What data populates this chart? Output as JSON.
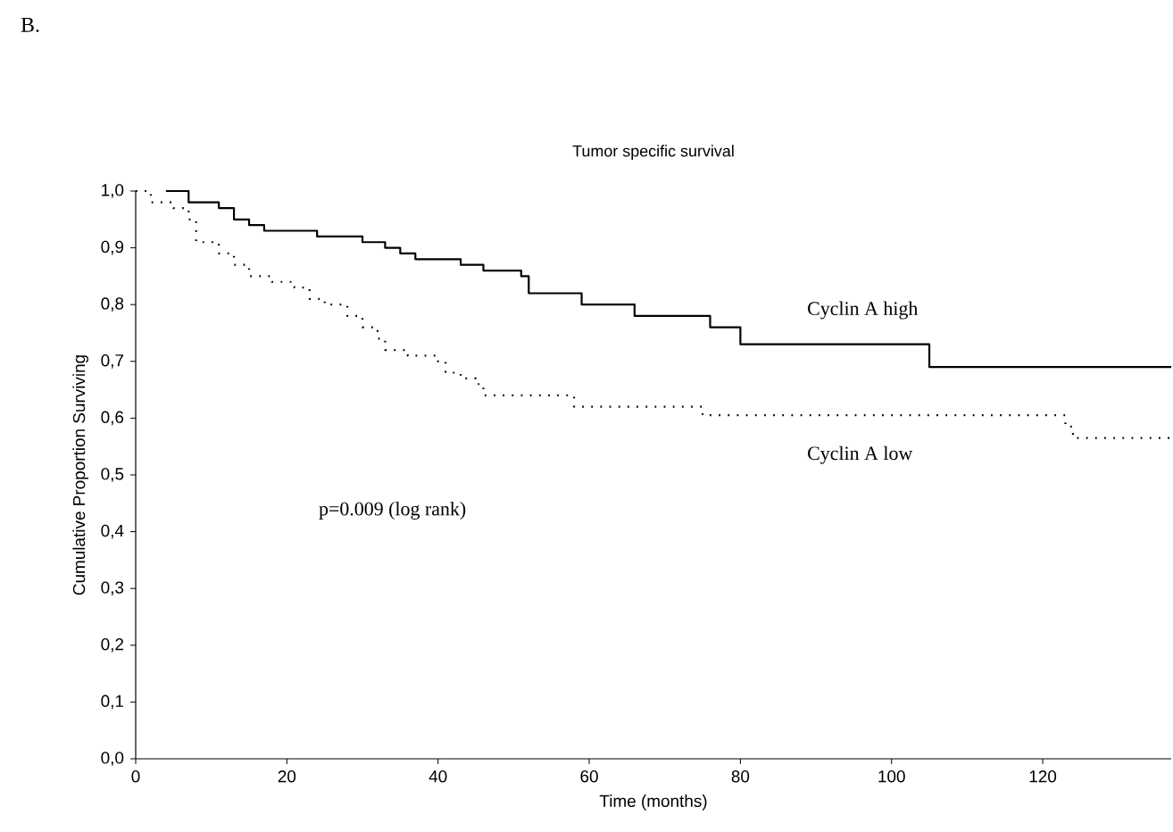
{
  "chart_data": {
    "type": "step",
    "title": "Tumor specific survival",
    "xlabel": "Time (months)",
    "ylabel": "Cumulative Proportion Surviving",
    "annotations": [
      "B.",
      "p=0.009 (log rank)"
    ],
    "xlim": [
      0,
      137
    ],
    "ylim": [
      0,
      1
    ],
    "xticks": [
      0,
      20,
      40,
      60,
      80,
      100,
      120
    ],
    "yticks": [
      {
        "value": 0,
        "label": "0,0"
      },
      {
        "value": 0.1,
        "label": "0,1"
      },
      {
        "value": 0.2,
        "label": "0,2"
      },
      {
        "value": 0.3,
        "label": "0,3"
      },
      {
        "value": 0.4,
        "label": "0,4"
      },
      {
        "value": 0.5,
        "label": "0,5"
      },
      {
        "value": 0.6,
        "label": "0,6"
      },
      {
        "value": 0.7,
        "label": "0,7"
      },
      {
        "value": 0.8,
        "label": "0,8"
      },
      {
        "value": 0.9,
        "label": "0,9"
      },
      {
        "value": 1,
        "label": "1,0"
      }
    ],
    "marker": "none",
    "series": [
      {
        "name": "Cyclin A high",
        "color": "#000000",
        "line_style": "solid",
        "x": [
          4,
          7,
          11,
          13,
          15,
          17,
          24,
          30,
          33,
          35,
          37,
          43,
          46,
          51,
          52,
          59,
          66,
          76,
          80,
          105,
          137
        ],
        "values": [
          1.0,
          0.98,
          0.97,
          0.95,
          0.94,
          0.93,
          0.92,
          0.91,
          0.9,
          0.89,
          0.88,
          0.87,
          0.86,
          0.85,
          0.82,
          0.8,
          0.78,
          0.76,
          0.73,
          0.69,
          0.69
        ]
      },
      {
        "name": "Cyclin A low",
        "color": "#000000",
        "line_style": "dotted",
        "x": [
          0,
          2,
          5,
          7,
          8,
          11,
          13,
          15,
          18,
          21,
          23,
          25,
          28,
          30,
          32,
          33,
          36,
          40,
          41,
          43,
          45,
          46,
          58,
          75,
          123,
          124,
          137
        ],
        "values": [
          1.0,
          0.98,
          0.97,
          0.95,
          0.91,
          0.89,
          0.87,
          0.85,
          0.84,
          0.83,
          0.81,
          0.8,
          0.78,
          0.76,
          0.74,
          0.72,
          0.71,
          0.7,
          0.68,
          0.67,
          0.66,
          0.64,
          0.62,
          0.605,
          0.585,
          0.565,
          0.565
        ]
      }
    ]
  }
}
